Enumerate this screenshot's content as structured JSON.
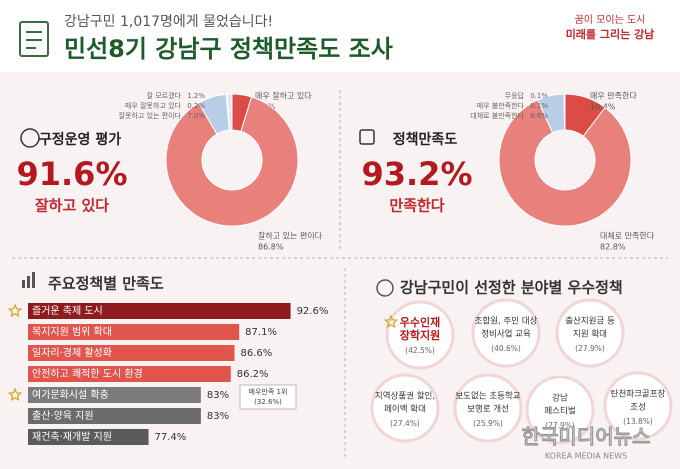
{
  "header": {
    "kicker": "강남구민 1,017명에게 물었습니다!",
    "title": "민선8기 강남구 정책만족도 조사",
    "logo_line1": "꿈이 모이는 도시",
    "logo_line2": "미래를 그리는 강남"
  },
  "chart_data": [
    {
      "type": "pie",
      "title": "구정운영 평가",
      "headline": "91.6%",
      "subtitle": "잘하고 있다",
      "categories": [
        "매우 잘하고 있다",
        "잘하고 있는 편이다",
        "잘못하고 있는 편이다",
        "매우 잘못하고 있다",
        "잘 모르겠다"
      ],
      "values": [
        4.8,
        86.8,
        7.0,
        0.2,
        1.2
      ],
      "value_labels": [
        "4.8%",
        "86.8%",
        "7.0%",
        "0.2%",
        "1.2%"
      ],
      "colors": [
        "#dc4b45",
        "#e8807b",
        "#b9cde9",
        "#cdd9ec",
        "#dde6f3"
      ]
    },
    {
      "type": "pie",
      "title": "정책만족도",
      "headline": "93.2%",
      "subtitle": "만족한다",
      "categories": [
        "매우 만족한다",
        "대체로 만족한다",
        "대체로 불만족한다",
        "매우 불만족한다",
        "무응답"
      ],
      "values": [
        10.4,
        82.8,
        6.6,
        0.1,
        0.1
      ],
      "value_labels": [
        "10.4%",
        "82.8%",
        "6.6%",
        "0.1%",
        "0.1%"
      ],
      "colors": [
        "#dc4b45",
        "#e8807b",
        "#b9cde9",
        "#cdd9ec",
        "#dde6f3"
      ]
    },
    {
      "type": "bar",
      "orientation": "horizontal",
      "title": "주요정책별 만족도",
      "categories": [
        "즐거운 축제 도시",
        "복지지원 범위 확대",
        "일자리·경제 활성화",
        "안전하고 쾌적한 도시 환경",
        "여가문화시설 확충",
        "출산·양육 지원",
        "재건축·재개발 지원"
      ],
      "values": [
        92.6,
        87.1,
        86.6,
        86.2,
        83,
        83,
        77.4
      ],
      "value_labels": [
        "92.6%",
        "87.1%",
        "86.6%",
        "86.2%",
        "83%",
        "83%",
        "77.4%"
      ],
      "colors": [
        "#8e1c1f",
        "#e0564f",
        "#e0564f",
        "#e0564f",
        "#7b7b7b",
        "#6b6b6b",
        "#5b5b5b"
      ],
      "xlim": [
        64.5,
        95
      ],
      "annotation": {
        "line1": "매우만족 1위",
        "line2": "(32.6%)"
      }
    }
  ],
  "policies": {
    "title": "강남구민이 선정한 분야별 우수정책",
    "items": [
      {
        "lines": [
          "우수인재",
          "장학지원"
        ],
        "share": "(42.5%)"
      },
      {
        "lines": [
          "조합원, 주민 대상",
          "정비사업 교육"
        ],
        "share": "(40.6%)"
      },
      {
        "lines": [
          "출산지원금 등",
          "지원 확대"
        ],
        "share": "(27.9%)"
      },
      {
        "lines": [
          "지역상품권 할인,",
          "페이백 확대"
        ],
        "share": "(27.4%)"
      },
      {
        "lines": [
          "보도없는 초등학교",
          "보행로 개선"
        ],
        "share": "(25.9%)"
      },
      {
        "lines": [
          "강남",
          "페스티벌"
        ],
        "share": "(27.9%)"
      },
      {
        "lines": [
          "탄천파크골프장",
          "조성"
        ],
        "share": "(13.8%)"
      }
    ]
  },
  "watermark": {
    "name": "한국미디어뉴스",
    "sub": "KOREA MEDIA NEWS"
  }
}
